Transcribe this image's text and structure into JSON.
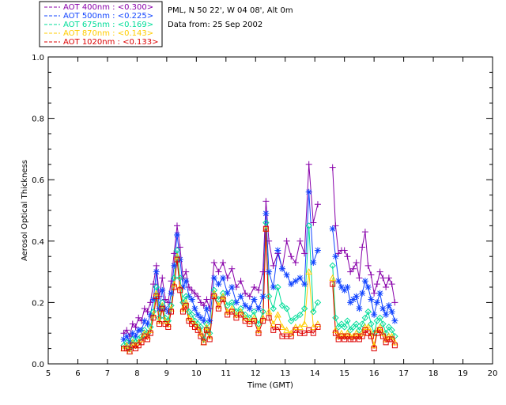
{
  "header": {
    "location": "PML, N 50 22', W 04 08', Alt 0m",
    "date": "Data from: 25 Sep 2002"
  },
  "chart_data": {
    "type": "line",
    "xlabel": "Time (GMT)",
    "ylabel": "Aerosol Optical Thickness",
    "xlim": [
      5,
      20
    ],
    "ylim": [
      0,
      1.0
    ],
    "xticks": [
      "5",
      "6",
      "7",
      "8",
      "9",
      "10",
      "11",
      "12",
      "13",
      "14",
      "15",
      "16",
      "17",
      "18",
      "19",
      "20"
    ],
    "yticks": [
      "0.0",
      "0.2",
      "0.4",
      "0.6",
      "0.8",
      "1.0"
    ],
    "legend_position": "top-left",
    "x": [
      7.55,
      7.65,
      7.75,
      7.85,
      7.95,
      8.05,
      8.15,
      8.25,
      8.35,
      8.45,
      8.55,
      8.65,
      8.75,
      8.85,
      8.95,
      9.05,
      9.15,
      9.25,
      9.35,
      9.45,
      9.55,
      9.65,
      9.75,
      9.85,
      9.95,
      10.05,
      10.15,
      10.25,
      10.35,
      10.45,
      10.6,
      10.75,
      10.9,
      11.05,
      11.2,
      11.35,
      11.5,
      11.65,
      11.8,
      11.95,
      12.1,
      12.25,
      12.35,
      12.45,
      12.6,
      12.75,
      12.9,
      13.05,
      13.2,
      13.35,
      13.5,
      13.65,
      13.8,
      13.95,
      14.1,
      14.6,
      14.7,
      14.8,
      14.9,
      15.0,
      15.1,
      15.2,
      15.3,
      15.4,
      15.5,
      15.6,
      15.7,
      15.8,
      15.9,
      16.0,
      16.1,
      16.2,
      16.3,
      16.4,
      16.5,
      16.6,
      16.7
    ],
    "series": [
      {
        "name": "AOT  400nm : <0.300>",
        "color": "#8800aa",
        "marker": "plus",
        "values": [
          0.1,
          0.11,
          0.09,
          0.13,
          0.12,
          0.15,
          0.14,
          0.18,
          0.17,
          0.2,
          0.26,
          0.32,
          0.22,
          0.28,
          0.21,
          0.2,
          0.27,
          0.36,
          0.45,
          0.38,
          0.28,
          0.3,
          0.25,
          0.24,
          0.23,
          0.22,
          0.2,
          0.19,
          0.21,
          0.18,
          0.33,
          0.3,
          0.33,
          0.28,
          0.31,
          0.25,
          0.27,
          0.23,
          0.22,
          0.25,
          0.24,
          0.3,
          0.53,
          0.4,
          0.32,
          0.36,
          0.31,
          0.4,
          0.35,
          0.33,
          0.4,
          0.36,
          0.65,
          0.46,
          0.52,
          0.64,
          0.45,
          0.36,
          0.37,
          0.37,
          0.35,
          0.3,
          0.31,
          0.33,
          0.28,
          0.38,
          0.43,
          0.32,
          0.29,
          0.23,
          0.26,
          0.3,
          0.28,
          0.25,
          0.28,
          0.26,
          0.2
        ]
      },
      {
        "name": "AOT  500nm : <0.225>",
        "color": "#1144ff",
        "marker": "star",
        "values": [
          0.08,
          0.09,
          0.07,
          0.1,
          0.09,
          0.11,
          0.11,
          0.14,
          0.13,
          0.16,
          0.21,
          0.3,
          0.18,
          0.24,
          0.18,
          0.17,
          0.23,
          0.32,
          0.42,
          0.34,
          0.25,
          0.27,
          0.22,
          0.21,
          0.18,
          0.16,
          0.15,
          0.14,
          0.18,
          0.14,
          0.28,
          0.26,
          0.28,
          0.23,
          0.25,
          0.2,
          0.22,
          0.19,
          0.18,
          0.21,
          0.18,
          0.22,
          0.49,
          0.3,
          0.25,
          0.37,
          0.31,
          0.29,
          0.26,
          0.27,
          0.28,
          0.26,
          0.56,
          0.33,
          0.37,
          0.44,
          0.35,
          0.27,
          0.25,
          0.24,
          0.25,
          0.2,
          0.21,
          0.22,
          0.18,
          0.23,
          0.27,
          0.25,
          0.21,
          0.16,
          0.2,
          0.23,
          0.18,
          0.16,
          0.19,
          0.17,
          0.14
        ]
      },
      {
        "name": "AOT  675nm : <0.169>",
        "color": "#00dd99",
        "marker": "diamond",
        "values": [
          0.06,
          0.07,
          0.05,
          0.08,
          0.07,
          0.08,
          0.09,
          0.11,
          0.1,
          0.12,
          0.17,
          0.25,
          0.15,
          0.2,
          0.15,
          0.14,
          0.19,
          0.28,
          0.37,
          0.28,
          0.2,
          0.22,
          0.17,
          0.16,
          0.14,
          0.13,
          0.12,
          0.08,
          0.13,
          0.1,
          0.24,
          0.21,
          0.23,
          0.19,
          0.2,
          0.17,
          0.18,
          0.16,
          0.15,
          0.17,
          0.13,
          0.17,
          0.46,
          0.22,
          0.18,
          0.25,
          0.19,
          0.18,
          0.14,
          0.15,
          0.16,
          0.18,
          0.45,
          0.17,
          0.2,
          0.32,
          0.15,
          0.12,
          0.13,
          0.12,
          0.14,
          0.11,
          0.12,
          0.13,
          0.11,
          0.13,
          0.15,
          0.17,
          0.13,
          0.1,
          0.14,
          0.15,
          0.13,
          0.1,
          0.12,
          0.11,
          0.09
        ]
      },
      {
        "name": "AOT  870nm : <0.143>",
        "color": "#ffcc00",
        "marker": "triangle",
        "values": [
          0.05,
          0.06,
          0.04,
          0.07,
          0.06,
          0.07,
          0.08,
          0.1,
          0.09,
          0.11,
          0.16,
          0.23,
          0.14,
          0.19,
          0.14,
          0.13,
          0.18,
          0.26,
          0.35,
          0.25,
          0.18,
          0.2,
          0.15,
          0.14,
          0.13,
          0.12,
          0.1,
          0.07,
          0.12,
          0.09,
          0.23,
          0.19,
          0.22,
          0.17,
          0.18,
          0.16,
          0.17,
          0.15,
          0.14,
          0.15,
          0.11,
          0.15,
          0.44,
          0.17,
          0.13,
          0.16,
          0.12,
          0.11,
          0.1,
          0.12,
          0.12,
          0.13,
          0.3,
          0.12,
          0.13,
          0.28,
          0.11,
          0.09,
          0.1,
          0.09,
          0.1,
          0.09,
          0.09,
          0.1,
          0.09,
          0.1,
          0.12,
          0.12,
          0.1,
          0.06,
          0.11,
          0.12,
          0.1,
          0.08,
          0.09,
          0.09,
          0.07
        ]
      },
      {
        "name": "AOT 1020nm : <0.133>",
        "color": "#dd0000",
        "marker": "square",
        "values": [
          0.05,
          0.05,
          0.04,
          0.06,
          0.05,
          0.06,
          0.07,
          0.09,
          0.08,
          0.1,
          0.15,
          0.22,
          0.13,
          0.18,
          0.13,
          0.12,
          0.17,
          0.25,
          0.34,
          0.24,
          0.17,
          0.19,
          0.14,
          0.13,
          0.12,
          0.11,
          0.09,
          0.07,
          0.11,
          0.08,
          0.22,
          0.18,
          0.21,
          0.16,
          0.17,
          0.15,
          0.16,
          0.14,
          0.13,
          0.14,
          0.1,
          0.14,
          0.44,
          0.15,
          0.11,
          0.12,
          0.09,
          0.09,
          0.09,
          0.11,
          0.1,
          0.1,
          0.11,
          0.1,
          0.12,
          0.26,
          0.1,
          0.08,
          0.09,
          0.08,
          0.09,
          0.08,
          0.08,
          0.09,
          0.08,
          0.09,
          0.11,
          0.1,
          0.09,
          0.05,
          0.1,
          0.11,
          0.09,
          0.07,
          0.08,
          0.08,
          0.06
        ]
      }
    ]
  }
}
